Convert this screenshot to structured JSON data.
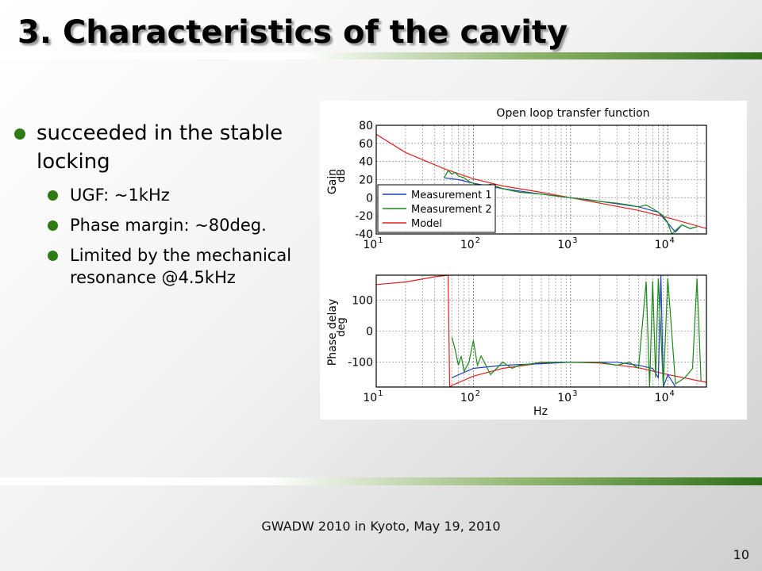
{
  "slide": {
    "title": "3. Characteristics of the cavity",
    "bullets": [
      {
        "text": "succeeded in the stable locking",
        "sub": [
          "UGF: ~1kHz",
          "Phase margin: ~80deg.",
          "Limited by the mechanical resonance @4.5kHz"
        ]
      }
    ],
    "footer": "GWADW 2010 in Kyoto, May 19, 2010",
    "page_number": "10"
  },
  "colors": {
    "accent_green": "#2f7a14",
    "measurement1": "#1f3fbf",
    "measurement2": "#1a8a1a",
    "model": "#e02020"
  },
  "chart_data": [
    {
      "type": "line",
      "title": "Open loop transfer function",
      "xlabel": "",
      "ylabel": "dB",
      "annotation": "Gain",
      "xscale": "log",
      "xlim": [
        10,
        25000
      ],
      "ylim": [
        -40,
        80
      ],
      "xticks": [
        10,
        100,
        1000,
        10000
      ],
      "xtick_labels": [
        {
          "base": "10",
          "exp": "1"
        },
        {
          "base": "10",
          "exp": "2"
        },
        {
          "base": "10",
          "exp": "3"
        },
        {
          "base": "10",
          "exp": "4"
        }
      ],
      "yticks": [
        -40,
        -20,
        0,
        20,
        40,
        60,
        80
      ],
      "grid": true,
      "legend_position": "bottom-left",
      "legend": [
        "Measurement 1",
        "Measurement 2",
        "Model"
      ],
      "series": [
        {
          "name": "Measurement 1",
          "x": [
            50,
            70,
            100,
            200,
            500,
            1000,
            2000,
            5000,
            8000,
            10000,
            12000,
            14000,
            17000,
            20000
          ],
          "y": [
            22,
            20,
            16,
            10,
            4,
            0,
            -4,
            -10,
            -16,
            -28,
            -38,
            -30,
            -34,
            -32
          ]
        },
        {
          "name": "Measurement 2",
          "x": [
            50,
            55,
            60,
            65,
            70,
            80,
            90,
            100,
            120,
            150,
            200,
            300,
            500,
            700,
            1000,
            1500,
            2000,
            3000,
            4000,
            5000,
            6000,
            7000,
            8000,
            9000,
            10000,
            11000,
            12000,
            14000,
            17000,
            20000
          ],
          "y": [
            22,
            30,
            26,
            28,
            24,
            22,
            18,
            16,
            12,
            15,
            10,
            6,
            4,
            2,
            0,
            -2,
            -4,
            -6,
            -8,
            -10,
            -8,
            -12,
            -16,
            -20,
            -28,
            -40,
            -36,
            -30,
            -34,
            -32
          ]
        },
        {
          "name": "Model",
          "x": [
            10,
            20,
            50,
            100,
            200,
            500,
            1000,
            2000,
            5000,
            10000,
            25000
          ],
          "y": [
            70,
            50,
            32,
            21,
            13,
            6,
            0,
            -6,
            -14,
            -22,
            -34
          ]
        }
      ]
    },
    {
      "type": "line",
      "title": "",
      "xlabel": "Hz",
      "ylabel": "deg",
      "annotation": "Phase delay",
      "xscale": "log",
      "xlim": [
        10,
        25000
      ],
      "ylim": [
        -180,
        180
      ],
      "xticks": [
        10,
        100,
        1000,
        10000
      ],
      "xtick_labels": [
        {
          "base": "10",
          "exp": "1"
        },
        {
          "base": "10",
          "exp": "2"
        },
        {
          "base": "10",
          "exp": "3"
        },
        {
          "base": "10",
          "exp": "4"
        }
      ],
      "yticks": [
        -100,
        0,
        100
      ],
      "grid": true,
      "series": [
        {
          "name": "Measurement 1",
          "x": [
            60,
            100,
            200,
            500,
            1000,
            2000,
            3000,
            5000,
            7000,
            8000,
            8500,
            9000,
            10000,
            11000,
            12000
          ],
          "y": [
            -150,
            -120,
            -110,
            -105,
            -100,
            -100,
            -100,
            -110,
            -120,
            -150,
            180,
            -180,
            -140,
            -160,
            -180
          ]
        },
        {
          "name": "Measurement 2",
          "x": [
            60,
            65,
            70,
            75,
            80,
            90,
            100,
            110,
            120,
            150,
            200,
            250,
            300,
            400,
            500,
            700,
            1000,
            1500,
            2000,
            3000,
            4000,
            5000,
            6000,
            6500,
            7000,
            7500,
            8000,
            9000,
            10000,
            12000,
            15000,
            18000,
            20000,
            22000
          ],
          "y": [
            -20,
            -60,
            -110,
            -80,
            -130,
            -100,
            -30,
            -110,
            -80,
            -140,
            -100,
            -120,
            -110,
            -105,
            -100,
            -100,
            -100,
            -100,
            -100,
            -110,
            -100,
            -120,
            160,
            -180,
            160,
            -150,
            170,
            -180,
            170,
            -170,
            -150,
            -120,
            170,
            -160
          ]
        },
        {
          "name": "Model",
          "x": [
            10,
            20,
            40,
            55,
            57,
            60,
            100,
            200,
            500,
            1000,
            2000,
            5000,
            10000,
            25000
          ],
          "y": [
            150,
            158,
            175,
            180,
            -180,
            -175,
            -145,
            -120,
            -103,
            -100,
            -103,
            -118,
            -140,
            -165
          ]
        }
      ]
    }
  ]
}
